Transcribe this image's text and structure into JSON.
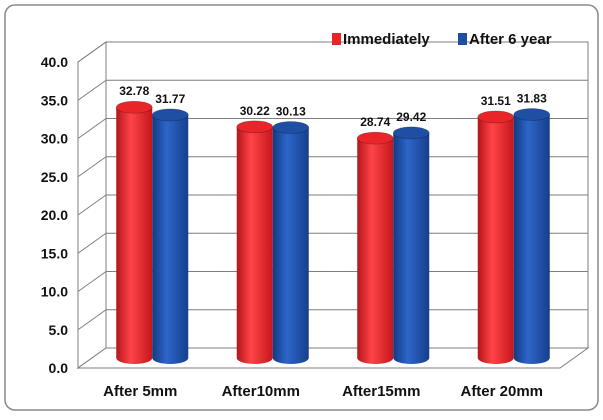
{
  "chart_data": {
    "type": "bar",
    "categories": [
      "After 5mm",
      "After10mm",
      "After15mm",
      "After 20mm"
    ],
    "series": [
      {
        "name": "Immediately",
        "values": [
          32.78,
          30.22,
          28.74,
          31.51
        ],
        "labels": [
          "32.78",
          "30.22",
          "28.74",
          "31.51"
        ],
        "color": "#e8262a"
      },
      {
        "name": "After 6 year",
        "values": [
          31.77,
          30.13,
          29.42,
          31.83
        ],
        "labels": [
          "31.77",
          "30.13",
          "29.42",
          "31.83"
        ],
        "color": "#1f4fa3"
      }
    ],
    "title": "",
    "xlabel": "",
    "ylabel": "",
    "ylim": [
      0,
      40
    ],
    "yticks": [
      0,
      5,
      10,
      15,
      20,
      25,
      30,
      35,
      40
    ],
    "yticklabels": [
      "0.0",
      "5.0",
      "10.0",
      "15.0",
      "20.0",
      "25.0",
      "30.0",
      "35.0",
      "40.0"
    ],
    "grid": true,
    "legend": "top-right",
    "style": "3d-cylinder"
  },
  "colors": {
    "frame_border": "#8a8a8a",
    "grid_line": "#7f7f7f",
    "wall": "#ffffff",
    "floor": "#ffffff",
    "text": "#111111"
  }
}
